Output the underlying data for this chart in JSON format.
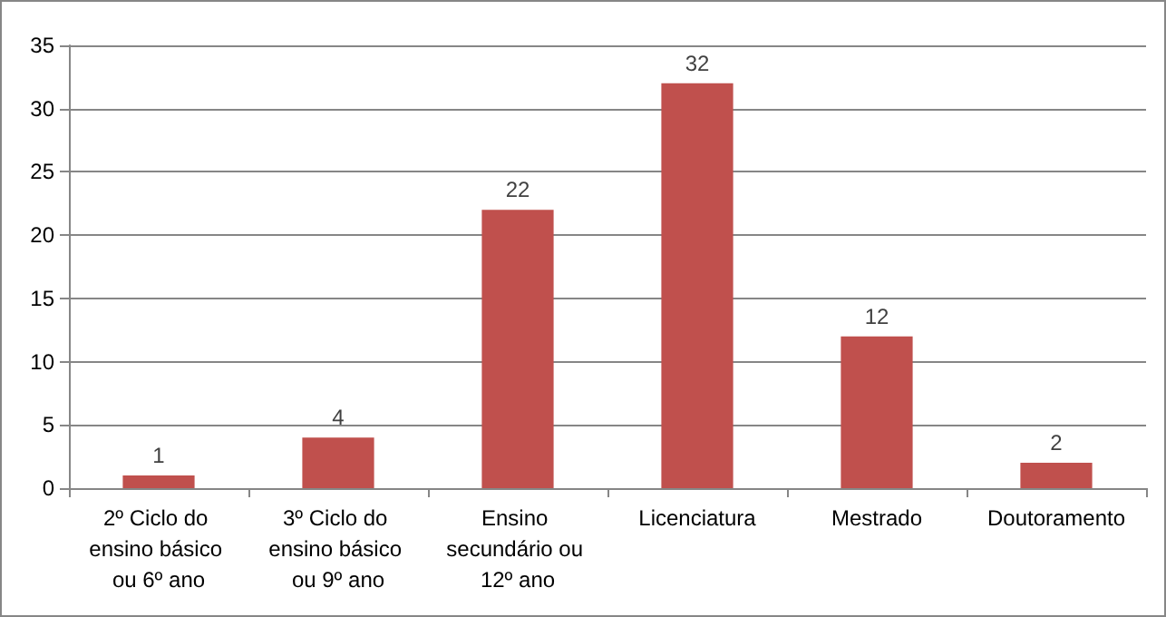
{
  "chart_data": {
    "type": "bar",
    "categories": [
      "2º Ciclo do ensino básico ou 6º ano",
      "3º Ciclo do ensino básico ou 9º ano",
      "Ensino secundário ou 12º ano",
      "Licenciatura",
      "Mestrado",
      "Doutoramento"
    ],
    "values": [
      1,
      4,
      22,
      32,
      12,
      2
    ],
    "color": "#c0504d",
    "ylim": [
      0,
      35
    ],
    "yticks": [
      0,
      5,
      10,
      15,
      20,
      25,
      30,
      35
    ],
    "grid": "y",
    "data_labels": true
  }
}
